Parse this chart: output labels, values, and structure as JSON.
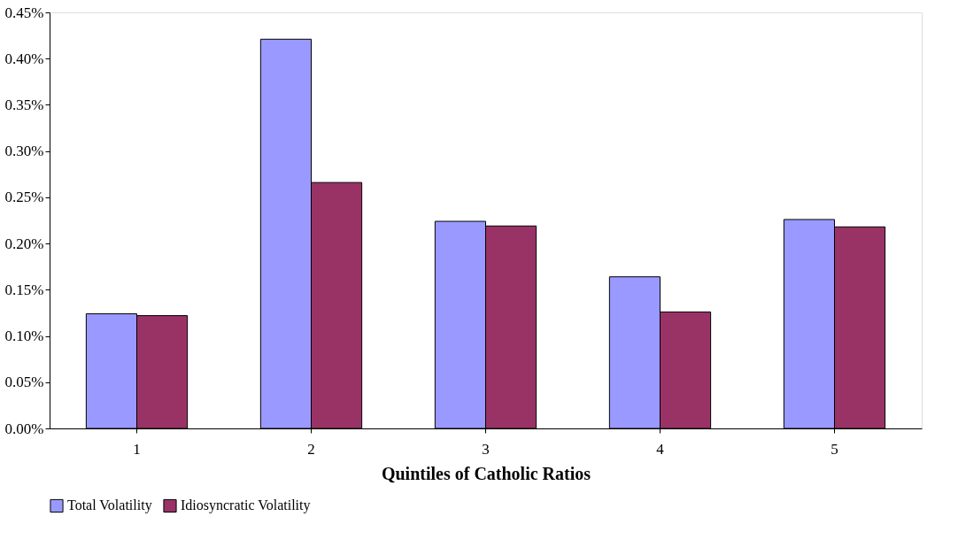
{
  "chart_data": {
    "type": "bar",
    "xlabel": "Quintiles of Catholic Ratios",
    "categories": [
      "1",
      "2",
      "3",
      "4",
      "5"
    ],
    "series": [
      {
        "name": "Total Volatility",
        "color": "#9999ff",
        "values": [
          0.124,
          0.421,
          0.224,
          0.164,
          0.226
        ]
      },
      {
        "name": "Idiosyncratic Volatility",
        "color": "#993366",
        "values": [
          0.122,
          0.266,
          0.219,
          0.126,
          0.218
        ]
      }
    ],
    "ylim": [
      0,
      0.45
    ],
    "yticks": [
      {
        "value": 0,
        "label": "0.00%"
      },
      {
        "value": 0.05,
        "label": "0.05%"
      },
      {
        "value": 0.1,
        "label": "0.10%"
      },
      {
        "value": 0.15,
        "label": "0.15%"
      },
      {
        "value": 0.2,
        "label": "0.20%"
      },
      {
        "value": 0.25,
        "label": "0.25%"
      },
      {
        "value": 0.3,
        "label": "0.30%"
      },
      {
        "value": 0.35,
        "label": "0.35%"
      },
      {
        "value": 0.4,
        "label": "0.40%"
      },
      {
        "value": 0.45,
        "label": "0.45%"
      }
    ],
    "grid": false,
    "legend": "bottom"
  }
}
